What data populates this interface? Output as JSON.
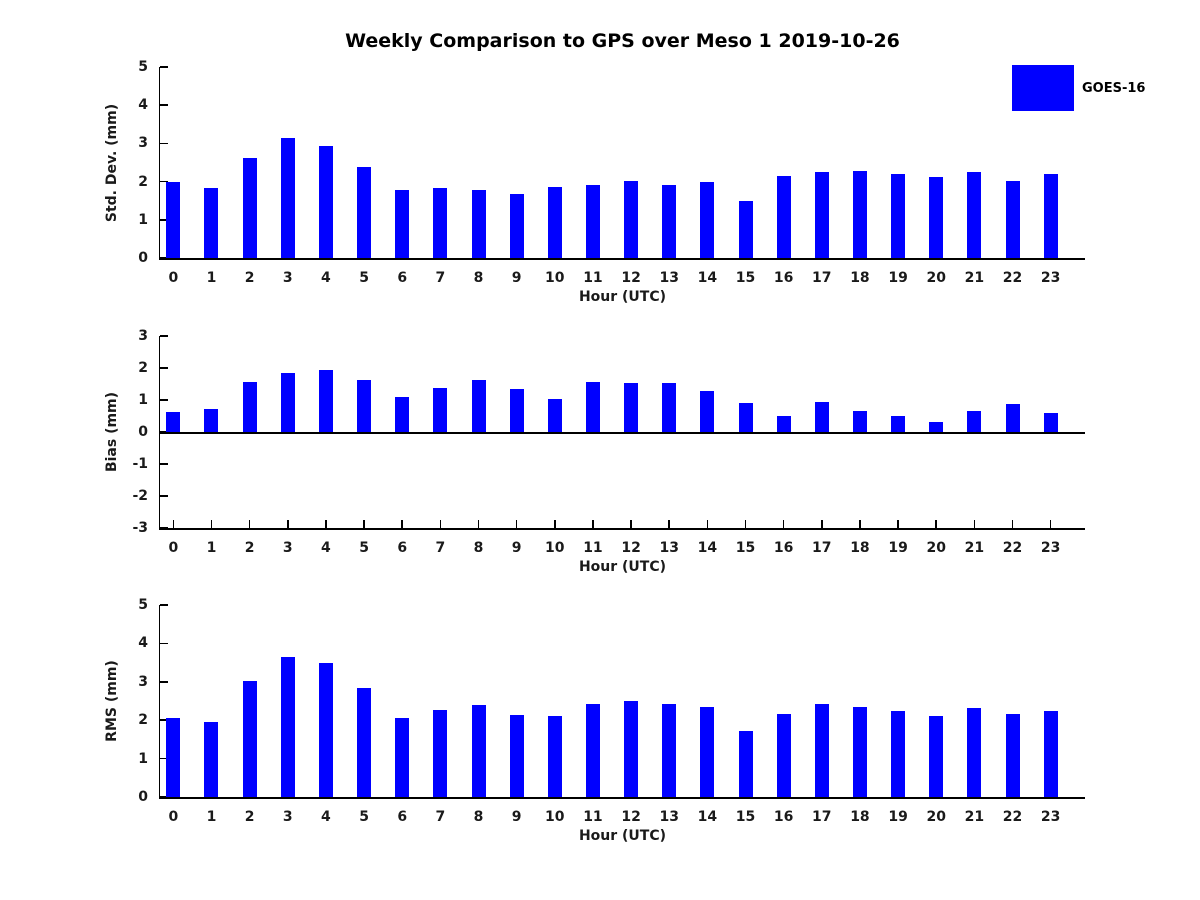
{
  "title": "Weekly Comparison to GPS over Meso 1 2019-10-26",
  "legend": {
    "label": "GOES-16",
    "color": "#0000ff",
    "position": "top-right"
  },
  "chart_data": [
    {
      "type": "bar",
      "title": "",
      "ylabel": "Std. Dev. (mm)",
      "xlabel": "Hour (UTC)",
      "series_name": "GOES-16",
      "categories": [
        "0",
        "1",
        "2",
        "3",
        "4",
        "5",
        "6",
        "7",
        "8",
        "9",
        "10",
        "11",
        "12",
        "13",
        "14",
        "15",
        "16",
        "17",
        "18",
        "19",
        "20",
        "21",
        "22",
        "23"
      ],
      "values": [
        2.0,
        1.83,
        2.62,
        3.15,
        2.94,
        2.37,
        1.78,
        1.83,
        1.78,
        1.67,
        1.85,
        1.91,
        2.02,
        1.91,
        2.0,
        1.5,
        2.15,
        2.26,
        2.29,
        2.21,
        2.13,
        2.26,
        2.02,
        2.2
      ],
      "ylim": [
        0,
        5
      ],
      "yticks": [
        0,
        1,
        2,
        3,
        4,
        5
      ],
      "grid": false
    },
    {
      "type": "bar",
      "title": "",
      "ylabel": "Bias (mm)",
      "xlabel": "Hour (UTC)",
      "series_name": "GOES-16",
      "categories": [
        "0",
        "1",
        "2",
        "3",
        "4",
        "5",
        "6",
        "7",
        "8",
        "9",
        "10",
        "11",
        "12",
        "13",
        "14",
        "15",
        "16",
        "17",
        "18",
        "19",
        "20",
        "21",
        "22",
        "23"
      ],
      "values": [
        0.61,
        0.71,
        1.57,
        1.84,
        1.93,
        1.61,
        1.08,
        1.36,
        1.64,
        1.33,
        1.02,
        1.55,
        1.52,
        1.52,
        1.27,
        0.92,
        0.5,
        0.93,
        0.66,
        0.5,
        0.31,
        0.66,
        0.87,
        0.58
      ],
      "ylim": [
        -3,
        3
      ],
      "yticks": [
        -3,
        -2,
        -1,
        0,
        1,
        2,
        3
      ],
      "zero_line": true,
      "grid": false
    },
    {
      "type": "bar",
      "title": "",
      "ylabel": "RMS (mm)",
      "xlabel": "Hour (UTC)",
      "series_name": "GOES-16",
      "categories": [
        "0",
        "1",
        "2",
        "3",
        "4",
        "5",
        "6",
        "7",
        "8",
        "9",
        "10",
        "11",
        "12",
        "13",
        "14",
        "15",
        "16",
        "17",
        "18",
        "19",
        "20",
        "21",
        "22",
        "23"
      ],
      "values": [
        2.06,
        1.96,
        3.03,
        3.64,
        3.48,
        2.83,
        2.06,
        2.27,
        2.39,
        2.14,
        2.1,
        2.41,
        2.5,
        2.41,
        2.34,
        1.72,
        2.17,
        2.43,
        2.34,
        2.25,
        2.12,
        2.32,
        2.17,
        2.24
      ],
      "ylim": [
        0,
        5
      ],
      "yticks": [
        0,
        1,
        2,
        3,
        4,
        5
      ],
      "grid": false
    }
  ]
}
